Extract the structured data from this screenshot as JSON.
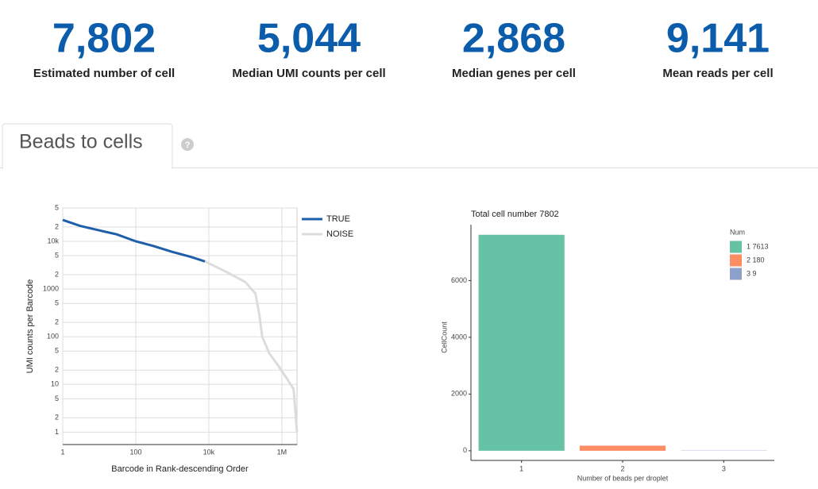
{
  "metrics": [
    {
      "value": "7,802",
      "label": "Estimated number of cell"
    },
    {
      "value": "5,044",
      "label": "Median UMI counts per cell"
    },
    {
      "value": "2,868",
      "label": "Median genes per cell"
    },
    {
      "value": "9,141",
      "label": "Mean reads per cell"
    }
  ],
  "tab": {
    "title": "Beads to cells",
    "help": "?"
  },
  "chart_data": [
    {
      "type": "line",
      "xlabel": "Barcode in Rank-descending Order",
      "ylabel": "UMI counts per Barcode",
      "log_x": true,
      "log_y": true,
      "grid": true,
      "xlim": [
        1,
        2600000
      ],
      "ylim": [
        0.55,
        50000
      ],
      "xticks": [
        1,
        100,
        {
          "value": 10000,
          "label": "10k"
        },
        {
          "value": 1000000,
          "label": "1M"
        }
      ],
      "yticks": [
        1,
        2,
        5,
        10,
        {
          "value": 20,
          "label": "2"
        },
        {
          "value": 50,
          "label": "5"
        },
        100,
        {
          "value": 200,
          "label": "2"
        },
        {
          "value": 500,
          "label": "5"
        },
        1000,
        {
          "value": 2000,
          "label": "2"
        },
        {
          "value": 5000,
          "label": "5"
        },
        {
          "value": 10000,
          "label": "10k"
        },
        {
          "value": 20000,
          "label": "2"
        },
        {
          "value": 50000,
          "label": "5"
        }
      ],
      "series": [
        {
          "name": "TRUE",
          "color": "#1f5ea8",
          "x": [
            1,
            3,
            10,
            30,
            100,
            300,
            1000,
            3000,
            7802
          ],
          "values": [
            28000,
            21000,
            17000,
            14000,
            10000,
            8000,
            6000,
            4800,
            3800
          ]
        },
        {
          "name": "NOISE",
          "color": "#dcdcdc",
          "x": [
            7802,
            30000,
            100000,
            190000,
            240000,
            290000,
            450000,
            790000,
            1400000,
            2100000,
            2600000
          ],
          "values": [
            3800,
            2300,
            1400,
            800,
            300,
            100,
            45,
            25,
            13,
            8,
            1
          ]
        }
      ]
    },
    {
      "type": "bar",
      "title": "Total cell number 7802",
      "xlabel": "Number of beads per droplet",
      "ylabel": "CellCount",
      "categories": [
        "1",
        "2",
        "3"
      ],
      "values": [
        7613,
        180,
        9
      ],
      "colors": [
        "#66c2a5",
        "#fc8d62",
        "#8da0cb"
      ],
      "legend_title": "Num",
      "legend_labels": [
        "1  7613",
        "2  180",
        "3  9"
      ],
      "ylim": [
        -340,
        7970
      ],
      "yticks": [
        0,
        2000,
        4000,
        6000
      ]
    }
  ]
}
